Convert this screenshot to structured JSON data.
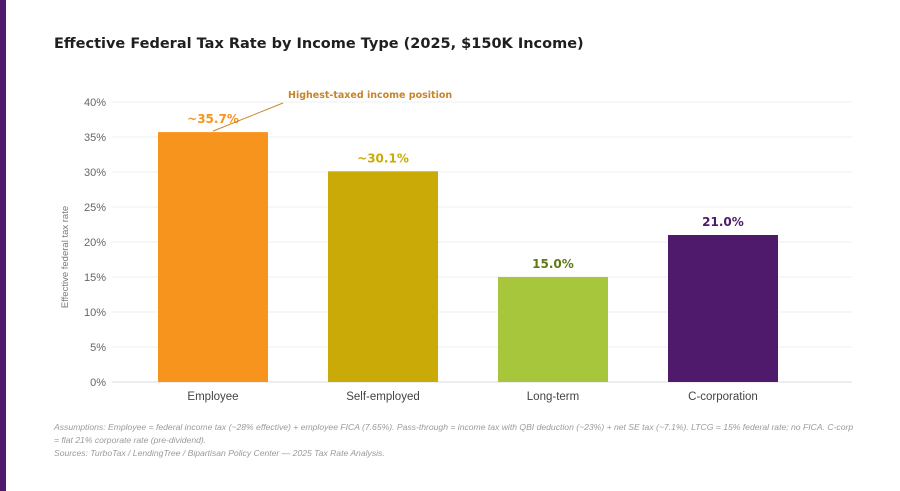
{
  "title": "Effective Federal Tax Rate by Income Type (2025, $150K Income)",
  "chart_data": {
    "type": "bar",
    "title": "Effective Federal Tax Rate by Income Type (2025, $150K Income)",
    "ylabel": "Effective federal tax rate",
    "xlabel": "",
    "ylim": [
      0,
      40
    ],
    "yticks": [
      0,
      5,
      10,
      15,
      20,
      25,
      30,
      35,
      40
    ],
    "ytick_labels": [
      "0%",
      "5%",
      "10%",
      "15%",
      "20%",
      "25%",
      "30%",
      "35%",
      "40%"
    ],
    "grid": true,
    "categories": [
      "Employee",
      "Self-employed",
      "Long-term",
      "C-corporation"
    ],
    "values": [
      35.7,
      30.1,
      15.0,
      21.0
    ],
    "data_labels": [
      "~35.7%",
      "~30.1%",
      "15.0%",
      "21.0%"
    ],
    "colors": [
      "#F7941D",
      "#C9AA07",
      "#A8C63C",
      "#4F1A6B"
    ],
    "label_colors": [
      "#F7941D",
      "#C9AA07",
      "#5E7A12",
      "#4F1A6B"
    ],
    "annotation": {
      "text": "Highest-taxed income position",
      "target": "Employee",
      "color": "#C8842A"
    }
  },
  "notes": {
    "assumptions": "Assumptions: Employee = federal income tax (~28% effective) + employee FICA (7.65%). Pass-through = income tax with QBI deduction (~23%) + net SE tax (~7.1%). LTCG = 15% federal rate; no FICA. C-corp = flat 21% corporate rate (pre-dividend).",
    "sources": "Sources: TurboTax / LendingTree / Bipartisan Policy Center — 2025 Tax Rate Analysis."
  }
}
